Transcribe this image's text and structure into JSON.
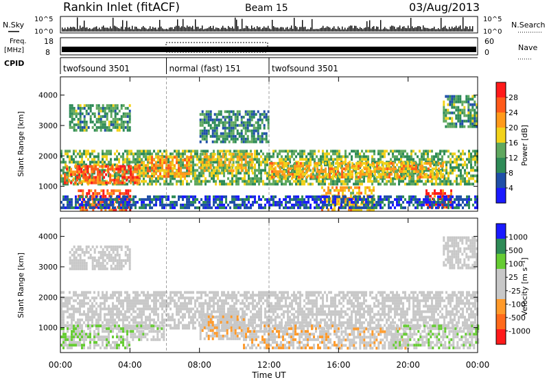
{
  "header": {
    "station": "Rankin Inlet (fitACF)",
    "beam": "Beam 15",
    "date": "03/Aug/2013"
  },
  "noise_panel": {
    "left_label": "N.Sky",
    "left_ticks": [
      "10^5",
      "10^0"
    ],
    "right_ticks": [
      "10^5",
      "10^0"
    ],
    "right_label": "N.Search"
  },
  "freq_panel": {
    "left_label_1": "Freq.",
    "left_label_2": "[MHz]",
    "left_ticks": [
      "18",
      "8"
    ],
    "right_ticks": [
      "60",
      "0"
    ],
    "right_label": "Nave"
  },
  "cpid": {
    "label": "CPID",
    "segments": [
      {
        "name": "twofsound 3501",
        "start_h": 0,
        "end_h": 6.1
      },
      {
        "name": "normal (fast) 151",
        "start_h": 6.1,
        "end_h": 12.0
      },
      {
        "name": "twofsound 3501",
        "start_h": 12.0,
        "end_h": 24
      }
    ]
  },
  "colors": {
    "power_scale": [
      "#1a1aff",
      "#1f4fa8",
      "#2e8b57",
      "#5fa85f",
      "#f2d21a",
      "#ff9a1a",
      "#ff5a1a",
      "#ff1a1a"
    ],
    "velocity_scale": [
      "#ff1a1a",
      "#ff6a1a",
      "#ff9a2a",
      "#c8c8c8",
      "#c8c8c8",
      "#66cc33",
      "#2e8b57",
      "#1a1aff"
    ]
  },
  "power_panel": {
    "colorbar_ticks": [
      "28",
      "24",
      "20",
      "16",
      "12",
      "8",
      "4"
    ],
    "colorbar_label": "Power [dB]"
  },
  "velocity_panel": {
    "colorbar_ticks": [
      "1000",
      "500",
      "100",
      "25",
      "-25",
      "-100",
      "-500",
      "-1000"
    ],
    "colorbar_label": "Velocity [m s⁻¹]"
  },
  "chart_data": {
    "type": "heatmap",
    "x_ticks": [
      "00:00",
      "04:00",
      "08:00",
      "12:00",
      "16:00",
      "20:00",
      "00:00"
    ],
    "x_range_hours": [
      0,
      24
    ],
    "xlabel": "Time UT",
    "ylabel": "Slant Range [km]",
    "y_ticks": [
      "4000",
      "3000",
      "2000",
      "1000"
    ],
    "ylim": [
      180,
      4600
    ],
    "panels": [
      {
        "name": "Power [dB]",
        "clim": [
          0,
          32
        ],
        "regions": [
          {
            "t0": 0,
            "t1": 24,
            "r0": 1100,
            "r1": 2200,
            "value": 14
          },
          {
            "t0": 0.2,
            "t1": 4.5,
            "r0": 1100,
            "r1": 1700,
            "value": 26
          },
          {
            "t0": 1,
            "t1": 4,
            "r0": 250,
            "r1": 900,
            "value": 26
          },
          {
            "t0": 4.5,
            "t1": 7.5,
            "r0": 1300,
            "r1": 2000,
            "value": 22
          },
          {
            "t0": 8,
            "t1": 11,
            "r0": 1500,
            "r1": 2100,
            "value": 18
          },
          {
            "t0": 12,
            "t1": 22,
            "r0": 1300,
            "r1": 1800,
            "value": 20
          },
          {
            "t0": 15,
            "t1": 18,
            "r0": 250,
            "r1": 1000,
            "value": 20
          },
          {
            "t0": 21,
            "t1": 22.5,
            "r0": 350,
            "r1": 900,
            "value": 28
          },
          {
            "t0": 0,
            "t1": 24,
            "r0": 250,
            "r1": 700,
            "value": 6
          },
          {
            "t0": 0.5,
            "t1": 4,
            "r0": 2800,
            "r1": 3700,
            "value": 12
          },
          {
            "t0": 8,
            "t1": 12,
            "r0": 2500,
            "r1": 3500,
            "value": 10
          },
          {
            "t0": 22,
            "t1": 24,
            "r0": 3000,
            "r1": 4000,
            "value": 12
          }
        ]
      },
      {
        "name": "Velocity [m s⁻¹]",
        "clim": [
          -1000,
          1000
        ],
        "regions": [
          {
            "t0": 0,
            "t1": 24,
            "r0": 1000,
            "r1": 2200,
            "value": 0
          },
          {
            "t0": 0,
            "t1": 4,
            "r0": 300,
            "r1": 1100,
            "value": 150
          },
          {
            "t0": 4,
            "t1": 6,
            "r0": 600,
            "r1": 1100,
            "value": 100
          },
          {
            "t0": 8,
            "t1": 10.5,
            "r0": 600,
            "r1": 1400,
            "value": -150
          },
          {
            "t0": 10.5,
            "t1": 16,
            "r0": 300,
            "r1": 1100,
            "value": -150
          },
          {
            "t0": 16,
            "t1": 20,
            "r0": 300,
            "r1": 1000,
            "value": -80
          },
          {
            "t0": 19,
            "t1": 24,
            "r0": 300,
            "r1": 1100,
            "value": 150
          },
          {
            "t0": 0.5,
            "t1": 4,
            "r0": 2900,
            "r1": 3700,
            "value": 0
          },
          {
            "t0": 22,
            "t1": 24,
            "r0": 3000,
            "r1": 4000,
            "value": 0
          }
        ]
      }
    ]
  }
}
